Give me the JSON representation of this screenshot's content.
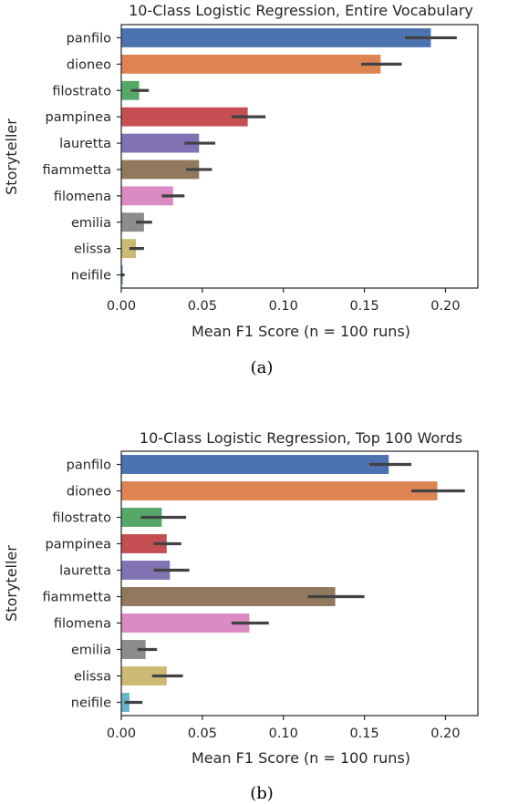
{
  "chart_data": [
    {
      "type": "bar",
      "orientation": "horizontal",
      "title": "10-Class Logistic Regression, Entire Vocabulary",
      "xlabel": "Mean F1 Score (n = 100 runs)",
      "ylabel": "Storyteller",
      "caption": "(a)",
      "xlim": [
        0,
        0.22
      ],
      "xticks": [
        "0.00",
        "0.05",
        "0.10",
        "0.15",
        "0.20"
      ],
      "grid": false,
      "categories": [
        "panfilo",
        "dioneo",
        "filostrato",
        "pampinea",
        "lauretta",
        "fiammetta",
        "filomena",
        "emilia",
        "elissa",
        "neifile"
      ],
      "values": [
        0.191,
        0.16,
        0.011,
        0.078,
        0.048,
        0.048,
        0.032,
        0.014,
        0.009,
        0.001
      ],
      "ci_low": [
        0.175,
        0.148,
        0.006,
        0.068,
        0.039,
        0.04,
        0.025,
        0.009,
        0.005,
        0.0
      ],
      "ci_high": [
        0.207,
        0.173,
        0.017,
        0.089,
        0.058,
        0.056,
        0.039,
        0.019,
        0.014,
        0.002
      ],
      "colors": [
        "#4c72b0",
        "#dd8452",
        "#55a868",
        "#c44e52",
        "#8172b3",
        "#937860",
        "#da8bc3",
        "#8c8c8c",
        "#ccb974",
        "#64b5cd"
      ]
    },
    {
      "type": "bar",
      "orientation": "horizontal",
      "title": "10-Class Logistic Regression, Top 100 Words",
      "xlabel": "Mean F1 Score (n = 100 runs)",
      "ylabel": "Storyteller",
      "caption": "(b)",
      "xlim": [
        0,
        0.22
      ],
      "xticks": [
        "0.00",
        "0.05",
        "0.10",
        "0.15",
        "0.20"
      ],
      "grid": false,
      "categories": [
        "panfilo",
        "dioneo",
        "filostrato",
        "pampinea",
        "lauretta",
        "fiammetta",
        "filomena",
        "emilia",
        "elissa",
        "neifile"
      ],
      "values": [
        0.165,
        0.195,
        0.025,
        0.028,
        0.03,
        0.132,
        0.079,
        0.015,
        0.028,
        0.005
      ],
      "ci_low": [
        0.153,
        0.179,
        0.012,
        0.02,
        0.02,
        0.115,
        0.068,
        0.01,
        0.019,
        0.002
      ],
      "ci_high": [
        0.179,
        0.212,
        0.04,
        0.037,
        0.042,
        0.15,
        0.091,
        0.022,
        0.038,
        0.013
      ],
      "colors": [
        "#4c72b0",
        "#dd8452",
        "#55a868",
        "#c44e52",
        "#8172b3",
        "#937860",
        "#da8bc3",
        "#8c8c8c",
        "#ccb974",
        "#64b5cd"
      ]
    }
  ]
}
